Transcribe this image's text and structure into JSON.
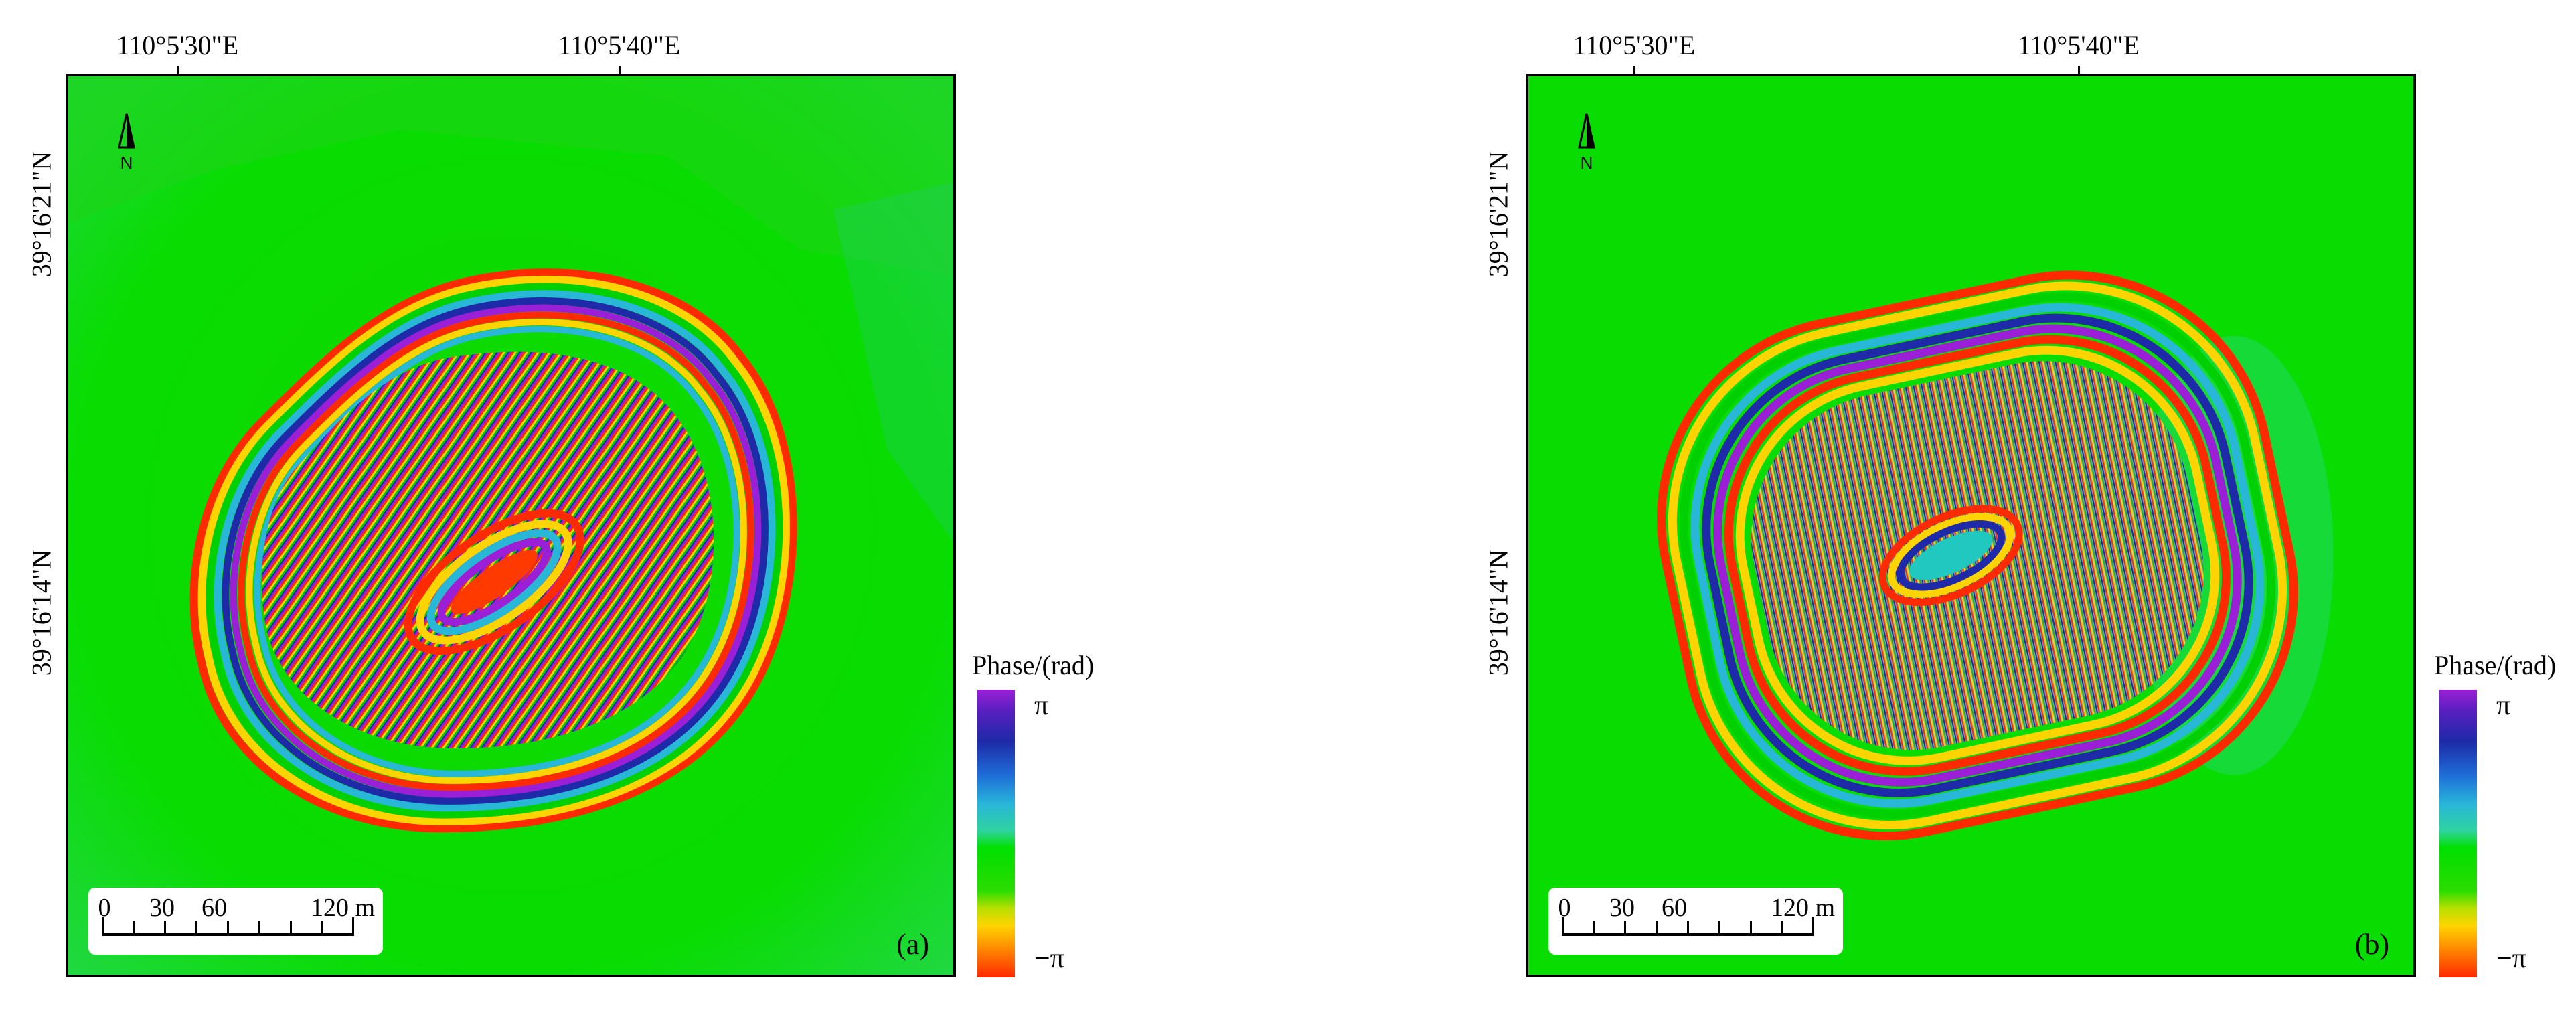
{
  "panels": [
    {
      "id": "a",
      "label": "(a)",
      "lon_labels": [
        "110°5'30\"E",
        "110°5'40\"E"
      ],
      "lat_labels": [
        "39°16'21\"N",
        "39°16'14\"N"
      ],
      "north_label": "N",
      "scale": {
        "labels": [
          "0",
          "30",
          "60",
          "120 m"
        ]
      },
      "legend": {
        "title": "Phase/(rad)",
        "max": "π",
        "min": "−π"
      }
    },
    {
      "id": "b",
      "label": "(b)",
      "lon_labels": [
        "110°5'30\"E",
        "110°5'40\"E"
      ],
      "lat_labels": [
        "39°16'21\"N",
        "39°16'14\"N"
      ],
      "north_label": "N",
      "scale": {
        "labels": [
          "0",
          "30",
          "60",
          "120 m"
        ]
      },
      "legend": {
        "title": "Phase/(rad)",
        "max": "π",
        "min": "−π"
      }
    }
  ],
  "colors": {
    "background_green": "#00e000",
    "fringe_red": "#ff2a00",
    "fringe_yellow": "#ffd400",
    "fringe_cyan": "#29b7d8",
    "fringe_blue": "#1e2aa8",
    "fringe_purple": "#9b1fd6"
  }
}
